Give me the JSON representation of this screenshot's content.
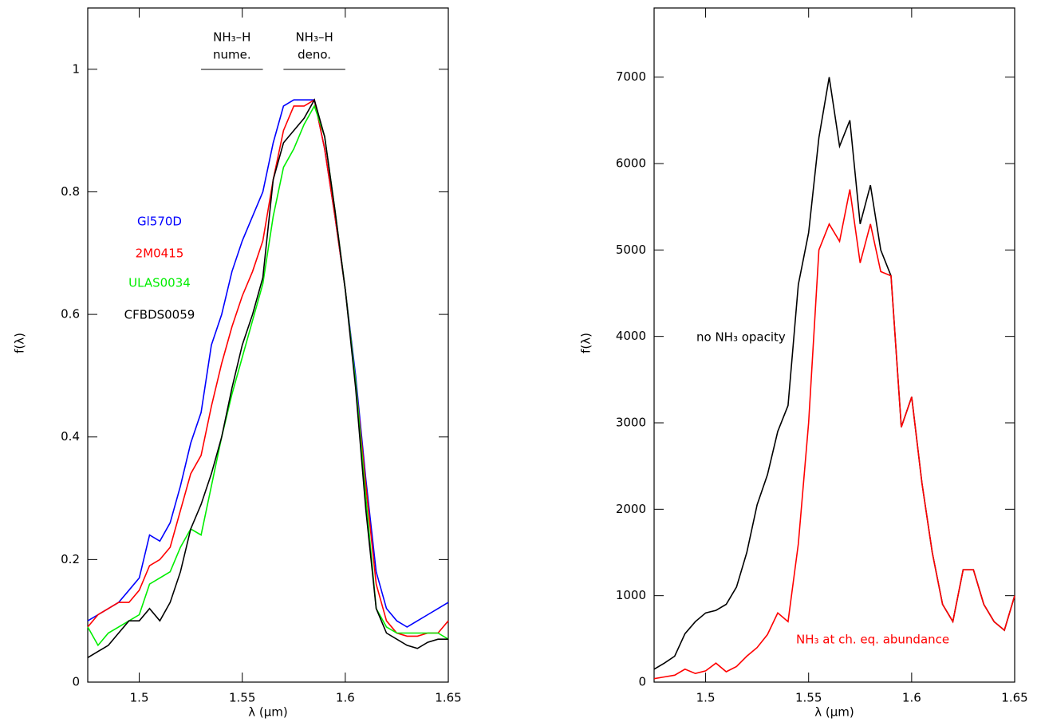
{
  "chart_data": [
    {
      "type": "line",
      "xlabel": "λ (μm)",
      "ylabel": "f(λ)",
      "xlim": [
        1.475,
        1.65
      ],
      "ylim": [
        0,
        1.1
      ],
      "xticks": [
        1.5,
        1.55,
        1.6,
        1.65
      ],
      "yticks": [
        0,
        0.2,
        0.4,
        0.6,
        0.8,
        1
      ],
      "x": [
        1.475,
        1.48,
        1.485,
        1.49,
        1.495,
        1.5,
        1.505,
        1.51,
        1.515,
        1.52,
        1.525,
        1.53,
        1.535,
        1.54,
        1.545,
        1.55,
        1.555,
        1.56,
        1.565,
        1.57,
        1.575,
        1.58,
        1.585,
        1.59,
        1.595,
        1.6,
        1.605,
        1.61,
        1.615,
        1.62,
        1.625,
        1.63,
        1.635,
        1.64,
        1.645,
        1.65
      ],
      "series": [
        {
          "name": "Gl570D",
          "color": "#0000ff",
          "values": [
            0.1,
            0.11,
            0.12,
            0.13,
            0.15,
            0.17,
            0.24,
            0.23,
            0.26,
            0.32,
            0.39,
            0.44,
            0.55,
            0.6,
            0.67,
            0.72,
            0.76,
            0.8,
            0.88,
            0.94,
            0.95,
            0.95,
            0.95,
            0.87,
            0.76,
            0.64,
            0.5,
            0.33,
            0.18,
            0.12,
            0.1,
            0.09,
            0.1,
            0.11,
            0.12,
            0.13
          ]
        },
        {
          "name": "2M0415",
          "color": "#ff0000",
          "values": [
            0.09,
            0.11,
            0.12,
            0.13,
            0.13,
            0.15,
            0.19,
            0.2,
            0.22,
            0.28,
            0.34,
            0.37,
            0.45,
            0.52,
            0.58,
            0.63,
            0.67,
            0.72,
            0.82,
            0.9,
            0.94,
            0.94,
            0.95,
            0.87,
            0.76,
            0.64,
            0.49,
            0.32,
            0.16,
            0.1,
            0.08,
            0.075,
            0.075,
            0.08,
            0.08,
            0.1
          ]
        },
        {
          "name": "ULAS0034",
          "color": "#00ee00",
          "values": [
            0.09,
            0.06,
            0.08,
            0.09,
            0.1,
            0.11,
            0.16,
            0.17,
            0.18,
            0.22,
            0.25,
            0.24,
            0.32,
            0.4,
            0.47,
            0.53,
            0.59,
            0.65,
            0.76,
            0.84,
            0.87,
            0.91,
            0.94,
            0.89,
            0.77,
            0.64,
            0.49,
            0.3,
            0.12,
            0.09,
            0.08,
            0.08,
            0.08,
            0.08,
            0.08,
            0.07
          ]
        },
        {
          "name": "CFBDS0059",
          "color": "#000000",
          "values": [
            0.04,
            0.05,
            0.06,
            0.08,
            0.1,
            0.1,
            0.12,
            0.1,
            0.13,
            0.18,
            0.25,
            0.29,
            0.34,
            0.4,
            0.48,
            0.55,
            0.6,
            0.66,
            0.82,
            0.88,
            0.9,
            0.92,
            0.95,
            0.89,
            0.77,
            0.64,
            0.48,
            0.28,
            0.12,
            0.08,
            0.07,
            0.06,
            0.055,
            0.065,
            0.07,
            0.07
          ]
        }
      ],
      "annotations": [
        {
          "text": "NH₃–H",
          "subtext": "nume.",
          "x_range": [
            1.53,
            1.56
          ]
        },
        {
          "text": "NH₃–H",
          "subtext": "deno.",
          "x_range": [
            1.57,
            1.6
          ]
        }
      ]
    },
    {
      "type": "line",
      "xlabel": "λ (μm)",
      "ylabel": "f(λ)",
      "xlim": [
        1.475,
        1.65
      ],
      "ylim": [
        0,
        7800
      ],
      "xticks": [
        1.5,
        1.55,
        1.6,
        1.65
      ],
      "yticks": [
        0,
        1000,
        2000,
        3000,
        4000,
        5000,
        6000,
        7000
      ],
      "x": [
        1.475,
        1.48,
        1.485,
        1.49,
        1.495,
        1.5,
        1.505,
        1.51,
        1.515,
        1.52,
        1.525,
        1.53,
        1.535,
        1.54,
        1.545,
        1.55,
        1.555,
        1.56,
        1.565,
        1.57,
        1.575,
        1.58,
        1.585,
        1.59,
        1.595,
        1.6,
        1.605,
        1.61,
        1.615,
        1.62,
        1.625,
        1.63,
        1.635,
        1.64,
        1.645,
        1.65
      ],
      "series": [
        {
          "name": "no NH₃ opacity",
          "color": "#000000",
          "values": [
            150,
            220,
            300,
            560,
            700,
            800,
            830,
            900,
            1100,
            1500,
            2050,
            2400,
            2900,
            3200,
            4600,
            5200,
            6300,
            7000,
            6200,
            6500,
            5300,
            5750,
            5000,
            4700,
            2950,
            3300,
            2300,
            1500,
            900,
            700,
            1300,
            1300,
            900,
            700,
            600,
            1000
          ]
        },
        {
          "name": "NH₃ at ch. eq. abundance",
          "color": "#ff0000",
          "values": [
            40,
            60,
            80,
            150,
            100,
            130,
            220,
            120,
            180,
            300,
            400,
            550,
            800,
            700,
            1600,
            3000,
            5000,
            5300,
            5100,
            5700,
            4850,
            5300,
            4750,
            4700,
            2950,
            3300,
            2300,
            1500,
            900,
            700,
            1300,
            1300,
            900,
            700,
            600,
            1000
          ]
        }
      ]
    }
  ]
}
